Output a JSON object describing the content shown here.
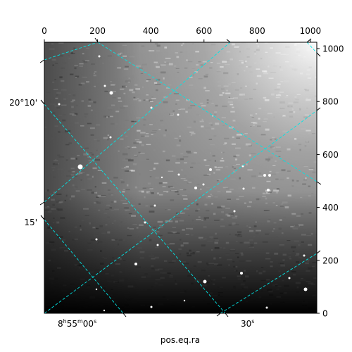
{
  "chart_data": {
    "type": "image",
    "title": "",
    "xlabel": "pos.eq.ra",
    "ylabel": "",
    "pixel_axes": {
      "x": {
        "range": [
          0,
          1024
        ],
        "ticks": [
          0,
          200,
          400,
          600,
          800,
          1000
        ]
      },
      "y": {
        "range": [
          0,
          1024
        ],
        "ticks": [
          0,
          200,
          400,
          600,
          800,
          1000
        ]
      }
    },
    "world_axes": {
      "ra_ticks": [
        {
          "label": "8h55m00s",
          "h": "8",
          "m": "55",
          "s": "00"
        },
        {
          "label": "30s",
          "value": "30",
          "unit": "s"
        }
      ],
      "dec_ticks": [
        {
          "label": "20°10'"
        },
        {
          "label": "15'"
        }
      ]
    },
    "grid": {
      "on": true,
      "color": "#00e5e5",
      "style": "dashed"
    },
    "image_colormap": "grayscale"
  }
}
